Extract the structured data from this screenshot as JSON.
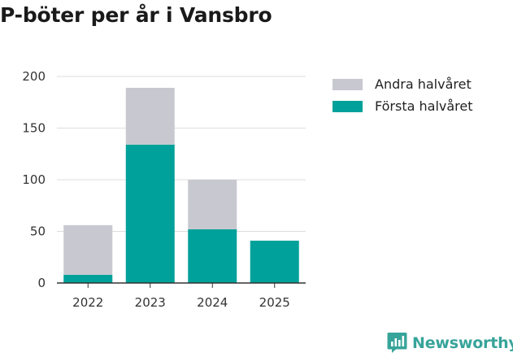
{
  "title": "P-böter per år i Vansbro",
  "brand": {
    "name": "Newsworthy",
    "icon": "newsworthy-logo-icon",
    "color": "#37a49a"
  },
  "chart_data": {
    "type": "bar",
    "stacked": true,
    "categories": [
      "2022",
      "2023",
      "2024",
      "2025"
    ],
    "series": [
      {
        "name": "Första halvåret",
        "color": "#00a19a",
        "values": [
          8,
          134,
          52,
          41
        ]
      },
      {
        "name": "Andra halvåret",
        "color": "#c8c8d0",
        "values": [
          48,
          55,
          48,
          0
        ]
      }
    ],
    "legend_order": [
      "Andra halvåret",
      "Första halvåret"
    ],
    "legend_position": "right",
    "ylim": [
      0,
      200
    ],
    "yticks": [
      0,
      50,
      100,
      150,
      200
    ],
    "grid": true
  }
}
